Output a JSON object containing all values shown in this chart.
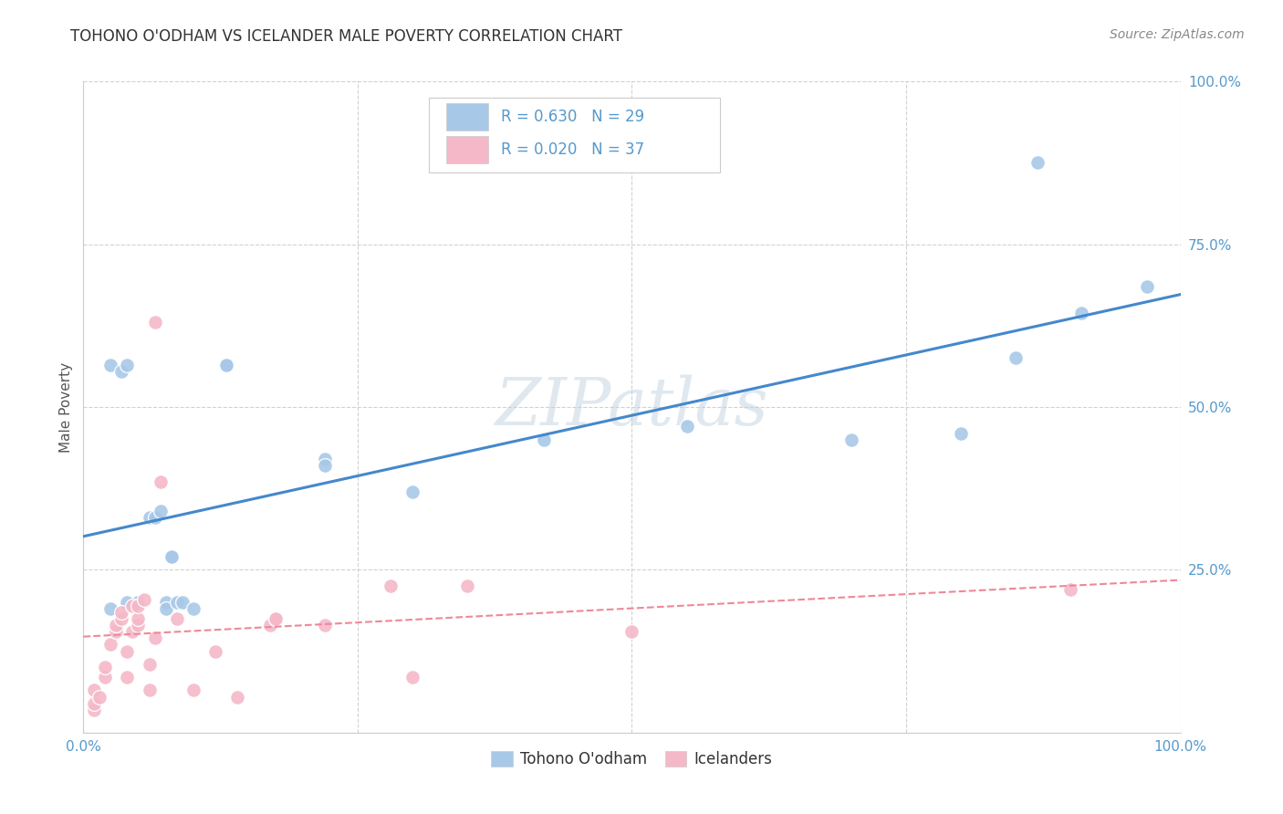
{
  "title": "TOHONO O'ODHAM VS ICELANDER MALE POVERTY CORRELATION CHART",
  "source": "Source: ZipAtlas.com",
  "ylabel": "Male Poverty",
  "watermark": "ZIPatlas",
  "xlim": [
    0,
    1
  ],
  "ylim": [
    0,
    1
  ],
  "xticks": [
    0.0,
    0.25,
    0.5,
    0.75,
    1.0
  ],
  "yticks": [
    0.0,
    0.25,
    0.5,
    0.75,
    1.0
  ],
  "xticklabels": [
    "0.0%",
    "",
    "",
    "",
    "100.0%"
  ],
  "yticklabels": [
    "",
    "25.0%",
    "50.0%",
    "75.0%",
    "100.0%"
  ],
  "blue_R": 0.63,
  "blue_N": 29,
  "pink_R": 0.02,
  "pink_N": 37,
  "blue_color": "#a8c8e8",
  "pink_color": "#f4b8c8",
  "blue_line_color": "#4488cc",
  "pink_line_color": "#ee8899",
  "background_color": "#ffffff",
  "grid_color": "#cccccc",
  "blue_x": [
    0.025,
    0.04,
    0.05,
    0.06,
    0.065,
    0.07,
    0.075,
    0.075,
    0.08,
    0.08,
    0.085,
    0.09,
    0.1,
    0.025,
    0.035,
    0.04,
    0.13,
    0.13,
    0.22,
    0.22,
    0.3,
    0.42,
    0.55,
    0.7,
    0.8,
    0.85,
    0.87,
    0.91,
    0.97
  ],
  "blue_y": [
    0.19,
    0.2,
    0.2,
    0.33,
    0.33,
    0.34,
    0.2,
    0.19,
    0.27,
    0.27,
    0.2,
    0.2,
    0.19,
    0.565,
    0.555,
    0.565,
    0.565,
    0.565,
    0.42,
    0.41,
    0.37,
    0.45,
    0.47,
    0.45,
    0.46,
    0.575,
    0.875,
    0.645,
    0.685
  ],
  "pink_x": [
    0.01,
    0.01,
    0.01,
    0.015,
    0.02,
    0.02,
    0.025,
    0.03,
    0.03,
    0.035,
    0.035,
    0.04,
    0.04,
    0.045,
    0.045,
    0.05,
    0.05,
    0.05,
    0.055,
    0.06,
    0.06,
    0.065,
    0.065,
    0.07,
    0.085,
    0.1,
    0.12,
    0.14,
    0.17,
    0.175,
    0.175,
    0.22,
    0.28,
    0.3,
    0.35,
    0.5,
    0.9
  ],
  "pink_y": [
    0.035,
    0.045,
    0.065,
    0.055,
    0.085,
    0.1,
    0.135,
    0.155,
    0.165,
    0.175,
    0.185,
    0.085,
    0.125,
    0.155,
    0.195,
    0.165,
    0.175,
    0.195,
    0.205,
    0.065,
    0.105,
    0.145,
    0.63,
    0.385,
    0.175,
    0.065,
    0.125,
    0.055,
    0.165,
    0.175,
    0.175,
    0.165,
    0.225,
    0.085,
    0.225,
    0.155,
    0.22
  ],
  "title_fontsize": 12,
  "axis_label_fontsize": 11,
  "tick_fontsize": 11,
  "watermark_fontsize": 52,
  "source_fontsize": 10
}
